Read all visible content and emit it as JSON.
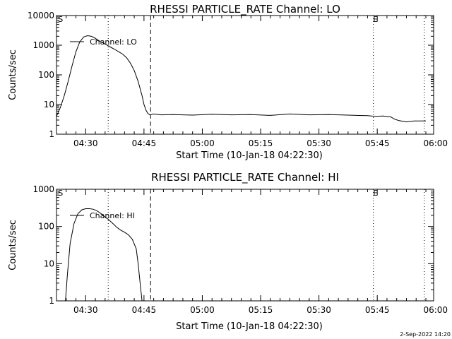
{
  "footer": {
    "timestamp": "2-Sep-2022 14:20"
  },
  "chart_data": [
    {
      "type": "line",
      "title": "RHESSI PARTICLE_RATE Channel: LO",
      "xlabel": "Start Time (10-Jan-18 04:22:30)",
      "ylabel": "Counts/sec",
      "yscale": "log",
      "ylim": [
        1,
        10000
      ],
      "xlim_minutes": [
        0,
        97
      ],
      "x_ticks": [
        "04:30",
        "04:45",
        "05:00",
        "05:15",
        "05:30",
        "05:45",
        "06:00"
      ],
      "x_tick_minutes": [
        7.5,
        22.5,
        37.5,
        52.5,
        67.5,
        82.5,
        97.5
      ],
      "y_ticks": [
        "1",
        "10",
        "100",
        "1000",
        "10000"
      ],
      "y_tick_values": [
        1,
        10,
        100,
        1000,
        10000
      ],
      "legend": "Channel: LO",
      "legend_position": "top-left",
      "markers": [
        {
          "label": "S",
          "x_minute": 0.5
        },
        {
          "label": "E",
          "x_minute": 81.5
        }
      ],
      "vlines_dotted_minutes": [
        13.3,
        81.5,
        94.6
      ],
      "vline_dashed_minute": 24.2,
      "series": [
        {
          "x": [
            0,
            1,
            2,
            3,
            4,
            5,
            6,
            7,
            8,
            9,
            10,
            11,
            12,
            13,
            14,
            15,
            16,
            17,
            18,
            19,
            20,
            21,
            22,
            22.5,
            23,
            23.5,
            24,
            25,
            27,
            30,
            35,
            40,
            45,
            50,
            55,
            60,
            65,
            70,
            75,
            80,
            82,
            84,
            86,
            87,
            88,
            90,
            92,
            95
          ],
          "y": [
            4,
            8,
            20,
            60,
            200,
            600,
            1300,
            1900,
            2100,
            2000,
            1700,
            1400,
            1200,
            1000,
            850,
            720,
            600,
            500,
            380,
            250,
            140,
            60,
            20,
            10,
            6.5,
            5,
            4.5,
            4.8,
            4.5,
            4.6,
            4.4,
            4.7,
            4.5,
            4.6,
            4.3,
            4.8,
            4.5,
            4.6,
            4.4,
            4.2,
            4.0,
            4.1,
            3.8,
            3.2,
            2.9,
            2.6,
            2.8,
            2.8
          ]
        }
      ]
    },
    {
      "type": "line",
      "title": "RHESSI PARTICLE_RATE Channel: HI",
      "xlabel": "Start Time (10-Jan-18 04:22:30)",
      "ylabel": "Counts/sec",
      "yscale": "log",
      "ylim": [
        1,
        1000
      ],
      "xlim_minutes": [
        0,
        97
      ],
      "x_ticks": [
        "04:30",
        "04:45",
        "05:00",
        "05:15",
        "05:30",
        "05:45",
        "06:00"
      ],
      "x_tick_minutes": [
        7.5,
        22.5,
        37.5,
        52.5,
        67.5,
        82.5,
        97.5
      ],
      "y_ticks": [
        "1",
        "10",
        "100",
        "1000"
      ],
      "y_tick_values": [
        1,
        10,
        100,
        1000
      ],
      "legend": "Channel: HI",
      "legend_position": "top-left",
      "markers": [
        {
          "label": "S",
          "x_minute": 0.5
        },
        {
          "label": "E",
          "x_minute": 81.5
        }
      ],
      "vlines_dotted_minutes": [
        13.3,
        81.5,
        94.6
      ],
      "vline_dashed_minute": 24.2,
      "series": [
        {
          "x": [
            2.3,
            2.8,
            3.5,
            4.5,
            5.5,
            6.5,
            7.5,
            8.5,
            9.5,
            10.5,
            11.5,
            12.5,
            13.5,
            14.5,
            15.5,
            16.5,
            17.5,
            18.5,
            19.5,
            20.5,
            21,
            21.5,
            22
          ],
          "y": [
            1,
            5,
            35,
            120,
            220,
            280,
            300,
            300,
            290,
            260,
            220,
            180,
            150,
            120,
            95,
            80,
            70,
            60,
            45,
            25,
            10,
            3,
            1
          ]
        }
      ]
    }
  ]
}
